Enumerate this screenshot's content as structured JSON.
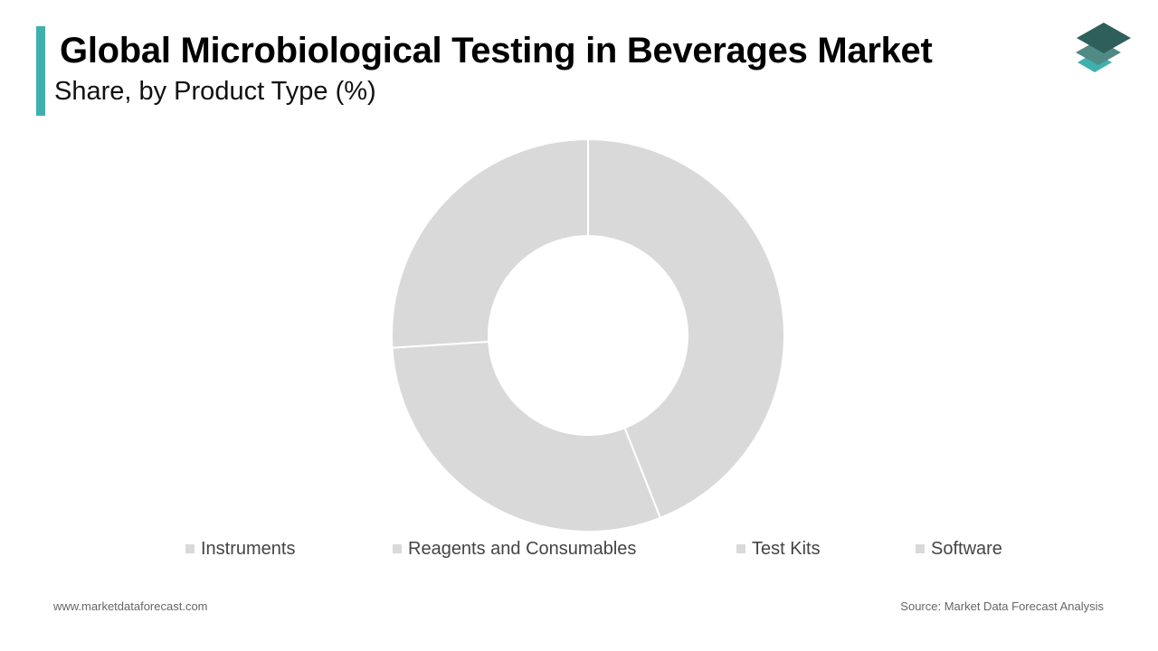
{
  "header": {
    "title": "Global Microbiological Testing in Beverages Market",
    "subtitle": "Share, by Product Type (%)"
  },
  "colors": {
    "accent": "#3fb0ae",
    "logo_top": "#2f5f5a",
    "logo_mid": "#4f8a85",
    "logo_bottom": "#3fb0ae",
    "slice_fill": "#d9d9d9"
  },
  "chart_data": {
    "type": "pie",
    "variant": "donut",
    "categories": [
      "Instruments",
      "Reagents and Consumables",
      "Test Kits",
      "Software"
    ],
    "values": [
      44,
      30,
      26,
      0
    ],
    "legend": "bottom"
  },
  "footer": {
    "website": "www.marketdataforecast.com",
    "source": "Source: Market Data Forecast Analysis"
  }
}
